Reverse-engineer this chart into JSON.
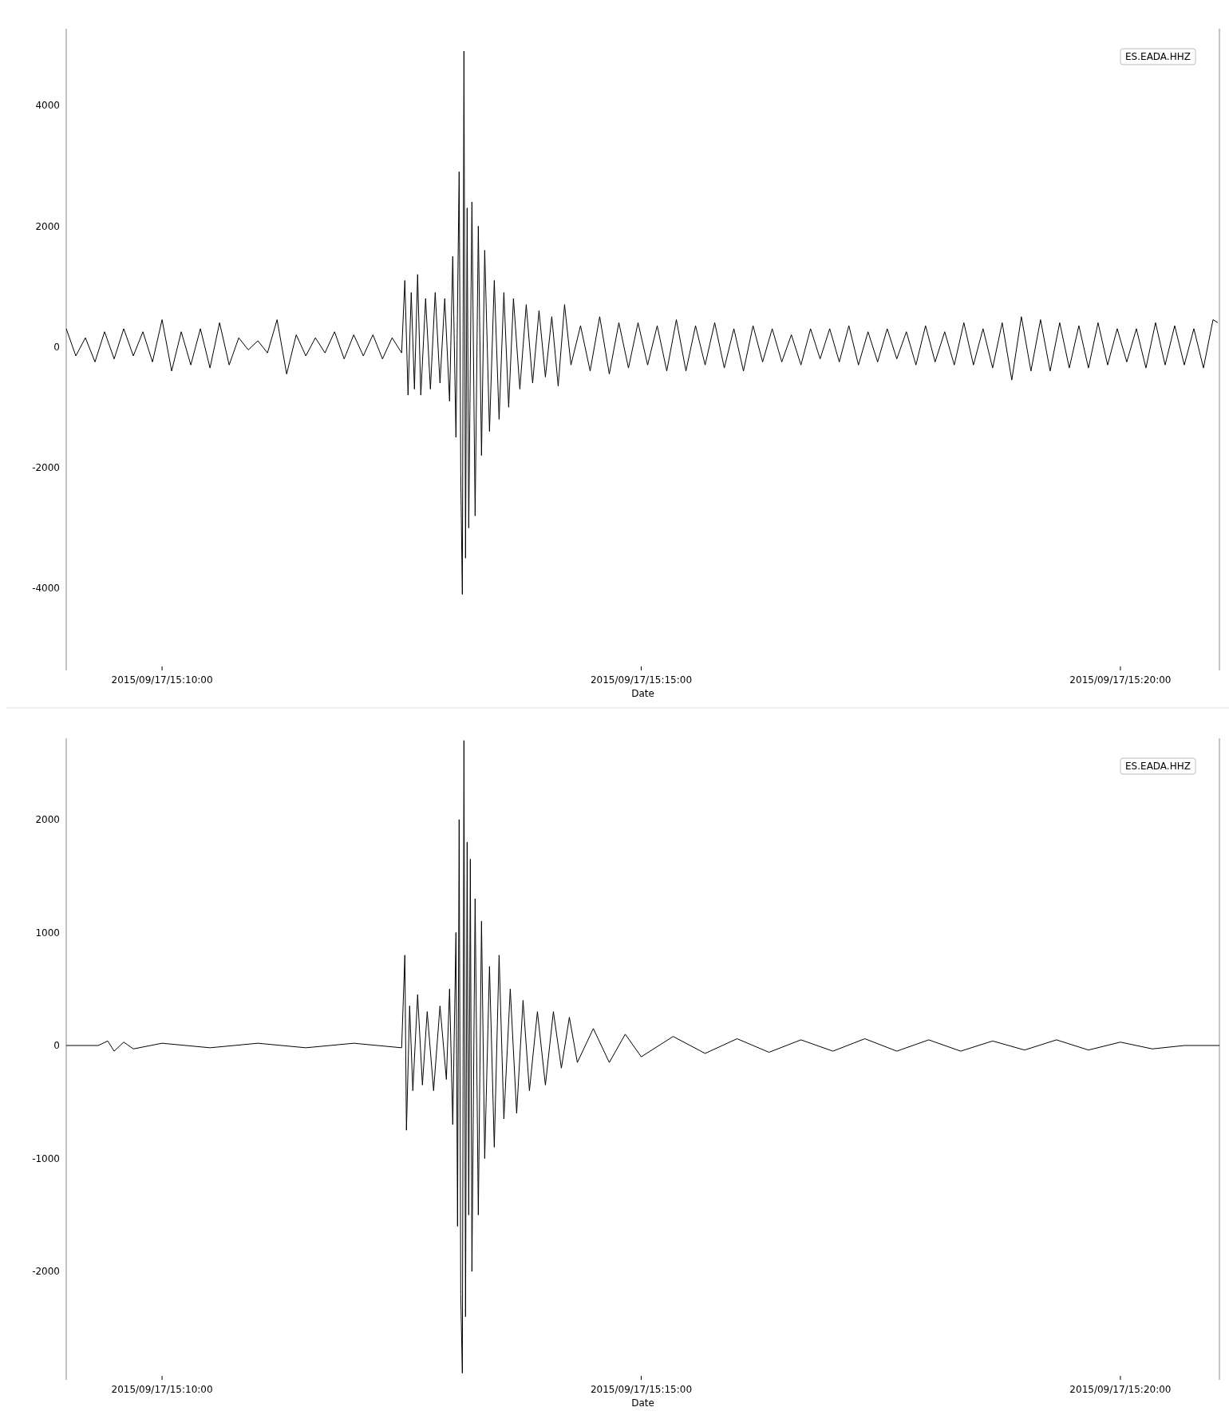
{
  "chart_data": [
    {
      "type": "line",
      "xlabel": "Date",
      "legend": "top right",
      "grid": false,
      "xlim": [
        "2015-09-17T15:09:00",
        "2015-09-17T15:21:02"
      ],
      "xticks": [
        {
          "value": "2015-09-17T15:10:00",
          "label": "2015/09/17/15:10:00"
        },
        {
          "value": "2015-09-17T15:15:00",
          "label": "2015/09/17/15:15:00"
        },
        {
          "value": "2015-09-17T15:20:00",
          "label": "2015/09/17/15:20:00"
        }
      ],
      "ylim": [
        -5360,
        5270
      ],
      "yticks": [
        -4000,
        -2000,
        0,
        2000,
        4000
      ],
      "series": [
        {
          "name": "ES.EADA.HHZ",
          "color": "#000000",
          "x": [
            "2015-09-17T15:09:00",
            "2015-09-17T15:09:06",
            "2015-09-17T15:09:12",
            "2015-09-17T15:09:18",
            "2015-09-17T15:09:24",
            "2015-09-17T15:09:30",
            "2015-09-17T15:09:36",
            "2015-09-17T15:09:42",
            "2015-09-17T15:09:48",
            "2015-09-17T15:09:54",
            "2015-09-17T15:10:00",
            "2015-09-17T15:10:06",
            "2015-09-17T15:10:12",
            "2015-09-17T15:10:18",
            "2015-09-17T15:10:24",
            "2015-09-17T15:10:30",
            "2015-09-17T15:10:36",
            "2015-09-17T15:10:42",
            "2015-09-17T15:10:48",
            "2015-09-17T15:10:54",
            "2015-09-17T15:11:00",
            "2015-09-17T15:11:06",
            "2015-09-17T15:11:12",
            "2015-09-17T15:11:18",
            "2015-09-17T15:11:24",
            "2015-09-17T15:11:30",
            "2015-09-17T15:11:36",
            "2015-09-17T15:11:42",
            "2015-09-17T15:11:48",
            "2015-09-17T15:11:54",
            "2015-09-17T15:12:00",
            "2015-09-17T15:12:06",
            "2015-09-17T15:12:12",
            "2015-09-17T15:12:18",
            "2015-09-17T15:12:24",
            "2015-09-17T15:12:30",
            "2015-09-17T15:12:32",
            "2015-09-17T15:12:34",
            "2015-09-17T15:12:36",
            "2015-09-17T15:12:38",
            "2015-09-17T15:12:40",
            "2015-09-17T15:12:42",
            "2015-09-17T15:12:45",
            "2015-09-17T15:12:48",
            "2015-09-17T15:12:51",
            "2015-09-17T15:12:54",
            "2015-09-17T15:12:57",
            "2015-09-17T15:13:00",
            "2015-09-17T15:13:02",
            "2015-09-17T15:13:04",
            "2015-09-17T15:13:06",
            "2015-09-17T15:13:07",
            "2015-09-17T15:13:08",
            "2015-09-17T15:13:09",
            "2015-09-17T15:13:10",
            "2015-09-17T15:13:11",
            "2015-09-17T15:13:12",
            "2015-09-17T15:13:14",
            "2015-09-17T15:13:16",
            "2015-09-17T15:13:18",
            "2015-09-17T15:13:20",
            "2015-09-17T15:13:22",
            "2015-09-17T15:13:25",
            "2015-09-17T15:13:28",
            "2015-09-17T15:13:31",
            "2015-09-17T15:13:34",
            "2015-09-17T15:13:37",
            "2015-09-17T15:13:40",
            "2015-09-17T15:13:44",
            "2015-09-17T15:13:48",
            "2015-09-17T15:13:52",
            "2015-09-17T15:13:56",
            "2015-09-17T15:14:00",
            "2015-09-17T15:14:04",
            "2015-09-17T15:14:08",
            "2015-09-17T15:14:12",
            "2015-09-17T15:14:16",
            "2015-09-17T15:14:22",
            "2015-09-17T15:14:28",
            "2015-09-17T15:14:34",
            "2015-09-17T15:14:40",
            "2015-09-17T15:14:46",
            "2015-09-17T15:14:52",
            "2015-09-17T15:14:58",
            "2015-09-17T15:15:04",
            "2015-09-17T15:15:10",
            "2015-09-17T15:15:16",
            "2015-09-17T15:15:22",
            "2015-09-17T15:15:28",
            "2015-09-17T15:15:34",
            "2015-09-17T15:15:40",
            "2015-09-17T15:15:46",
            "2015-09-17T15:15:52",
            "2015-09-17T15:15:58",
            "2015-09-17T15:16:04",
            "2015-09-17T15:16:10",
            "2015-09-17T15:16:16",
            "2015-09-17T15:16:22",
            "2015-09-17T15:16:28",
            "2015-09-17T15:16:34",
            "2015-09-17T15:16:40",
            "2015-09-17T15:16:46",
            "2015-09-17T15:16:52",
            "2015-09-17T15:16:58",
            "2015-09-17T15:17:04",
            "2015-09-17T15:17:10",
            "2015-09-17T15:17:16",
            "2015-09-17T15:17:22",
            "2015-09-17T15:17:28",
            "2015-09-17T15:17:34",
            "2015-09-17T15:17:40",
            "2015-09-17T15:17:46",
            "2015-09-17T15:17:52",
            "2015-09-17T15:17:58",
            "2015-09-17T15:18:04",
            "2015-09-17T15:18:10",
            "2015-09-17T15:18:16",
            "2015-09-17T15:18:22",
            "2015-09-17T15:18:28",
            "2015-09-17T15:18:34",
            "2015-09-17T15:18:40",
            "2015-09-17T15:18:46",
            "2015-09-17T15:18:52",
            "2015-09-17T15:18:58",
            "2015-09-17T15:19:04",
            "2015-09-17T15:19:10",
            "2015-09-17T15:19:16",
            "2015-09-17T15:19:22",
            "2015-09-17T15:19:28",
            "2015-09-17T15:19:34",
            "2015-09-17T15:19:40",
            "2015-09-17T15:19:46",
            "2015-09-17T15:19:52",
            "2015-09-17T15:19:58",
            "2015-09-17T15:20:04",
            "2015-09-17T15:20:10",
            "2015-09-17T15:20:16",
            "2015-09-17T15:20:22",
            "2015-09-17T15:20:28",
            "2015-09-17T15:20:34",
            "2015-09-17T15:20:40",
            "2015-09-17T15:20:46",
            "2015-09-17T15:20:52",
            "2015-09-17T15:20:58",
            "2015-09-17T15:21:01"
          ],
          "values": [
            300,
            -150,
            150,
            -250,
            250,
            -200,
            300,
            -150,
            250,
            -250,
            450,
            -400,
            250,
            -300,
            300,
            -350,
            400,
            -300,
            150,
            -50,
            100,
            -100,
            450,
            -450,
            200,
            -150,
            150,
            -100,
            250,
            -200,
            200,
            -150,
            200,
            -200,
            150,
            -100,
            1100,
            -800,
            900,
            -700,
            1200,
            -800,
            800,
            -700,
            900,
            -600,
            800,
            -900,
            1500,
            -1500,
            2900,
            -2100,
            -4100,
            4900,
            -3500,
            2300,
            -3000,
            2400,
            -2800,
            2000,
            -1800,
            1600,
            -1400,
            1100,
            -1200,
            900,
            -1000,
            800,
            -700,
            700,
            -600,
            600,
            -500,
            500,
            -650,
            700,
            -300,
            350,
            -400,
            500,
            -450,
            400,
            -350,
            400,
            -300,
            350,
            -400,
            450,
            -400,
            350,
            -300,
            400,
            -350,
            300,
            -400,
            350,
            -250,
            300,
            -250,
            200,
            -300,
            300,
            -200,
            300,
            -250,
            350,
            -300,
            250,
            -250,
            300,
            -200,
            250,
            -300,
            350,
            -250,
            250,
            -300,
            400,
            -300,
            300,
            -350,
            400,
            -550,
            500,
            -400,
            450,
            -400,
            400,
            -350,
            350,
            -350,
            400,
            -300,
            300,
            -250,
            300,
            -350,
            400,
            -300,
            350,
            -300,
            300,
            -350,
            450,
            400
          ]
        }
      ]
    },
    {
      "type": "line",
      "xlabel": "Date",
      "legend": "top right",
      "grid": false,
      "xlim": [
        "2015-09-17T15:09:00",
        "2015-09-17T15:21:02"
      ],
      "xticks": [
        {
          "value": "2015-09-17T15:10:00",
          "label": "2015/09/17/15:10:00"
        },
        {
          "value": "2015-09-17T15:15:00",
          "label": "2015/09/17/15:15:00"
        },
        {
          "value": "2015-09-17T15:20:00",
          "label": "2015/09/17/15:20:00"
        }
      ],
      "ylim": [
        -2960,
        2720
      ],
      "yticks": [
        -2000,
        -1000,
        0,
        1000,
        2000
      ],
      "series": [
        {
          "name": "ES.EADA.HHZ",
          "color": "#000000",
          "x": [
            "2015-09-17T15:09:00",
            "2015-09-17T15:09:20",
            "2015-09-17T15:09:26",
            "2015-09-17T15:09:30",
            "2015-09-17T15:09:36",
            "2015-09-17T15:09:42",
            "2015-09-17T15:10:00",
            "2015-09-17T15:10:30",
            "2015-09-17T15:11:00",
            "2015-09-17T15:11:30",
            "2015-09-17T15:12:00",
            "2015-09-17T15:12:30",
            "2015-09-17T15:12:32",
            "2015-09-17T15:12:33",
            "2015-09-17T15:12:35",
            "2015-09-17T15:12:37",
            "2015-09-17T15:12:40",
            "2015-09-17T15:12:43",
            "2015-09-17T15:12:46",
            "2015-09-17T15:12:50",
            "2015-09-17T15:12:54",
            "2015-09-17T15:12:58",
            "2015-09-17T15:13:00",
            "2015-09-17T15:13:02",
            "2015-09-17T15:13:04",
            "2015-09-17T15:13:05",
            "2015-09-17T15:13:06",
            "2015-09-17T15:13:07",
            "2015-09-17T15:13:08",
            "2015-09-17T15:13:09",
            "2015-09-17T15:13:10",
            "2015-09-17T15:13:11",
            "2015-09-17T15:13:12",
            "2015-09-17T15:13:13",
            "2015-09-17T15:13:14",
            "2015-09-17T15:13:16",
            "2015-09-17T15:13:18",
            "2015-09-17T15:13:20",
            "2015-09-17T15:13:22",
            "2015-09-17T15:13:25",
            "2015-09-17T15:13:28",
            "2015-09-17T15:13:31",
            "2015-09-17T15:13:34",
            "2015-09-17T15:13:38",
            "2015-09-17T15:13:42",
            "2015-09-17T15:13:46",
            "2015-09-17T15:13:50",
            "2015-09-17T15:13:55",
            "2015-09-17T15:14:00",
            "2015-09-17T15:14:05",
            "2015-09-17T15:14:10",
            "2015-09-17T15:14:15",
            "2015-09-17T15:14:20",
            "2015-09-17T15:14:30",
            "2015-09-17T15:14:40",
            "2015-09-17T15:14:50",
            "2015-09-17T15:15:00",
            "2015-09-17T15:15:20",
            "2015-09-17T15:15:40",
            "2015-09-17T15:16:00",
            "2015-09-17T15:16:20",
            "2015-09-17T15:16:40",
            "2015-09-17T15:17:00",
            "2015-09-17T15:17:20",
            "2015-09-17T15:17:40",
            "2015-09-17T15:18:00",
            "2015-09-17T15:18:20",
            "2015-09-17T15:18:40",
            "2015-09-17T15:19:00",
            "2015-09-17T15:19:20",
            "2015-09-17T15:19:40",
            "2015-09-17T15:20:00",
            "2015-09-17T15:20:20",
            "2015-09-17T15:20:40",
            "2015-09-17T15:21:02"
          ],
          "values": [
            0,
            0,
            40,
            -50,
            30,
            -30,
            20,
            -20,
            20,
            -20,
            20,
            -20,
            800,
            -750,
            350,
            -400,
            450,
            -350,
            300,
            -400,
            350,
            -300,
            500,
            -700,
            1000,
            -1600,
            2000,
            -2200,
            -2900,
            2700,
            -2400,
            1800,
            -1500,
            1650,
            -2000,
            1300,
            -1500,
            1100,
            -1000,
            700,
            -900,
            800,
            -650,
            500,
            -600,
            400,
            -400,
            300,
            -350,
            300,
            -200,
            250,
            -150,
            150,
            -150,
            100,
            -100,
            80,
            -70,
            60,
            -60,
            50,
            -50,
            60,
            -50,
            50,
            -50,
            40,
            -40,
            50,
            -40,
            30,
            -30,
            0,
            0
          ]
        }
      ]
    }
  ]
}
